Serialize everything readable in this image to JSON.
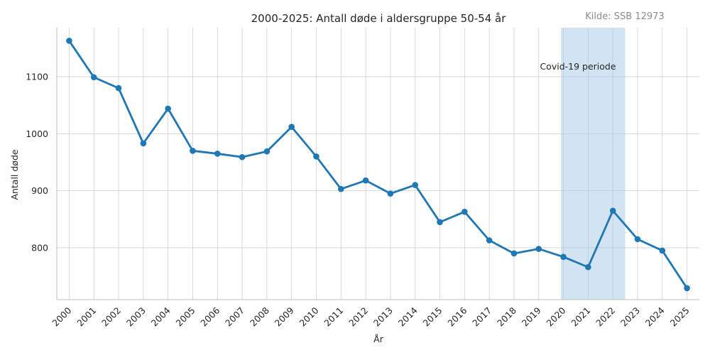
{
  "chart_data": {
    "type": "line",
    "title": "2000-2025: Antall døde i aldersgruppe 50-54 år",
    "source": "Kilde: SSB 12973",
    "xlabel": "År",
    "ylabel": "Antall døde",
    "x": [
      "2000",
      "2001",
      "2002",
      "2003",
      "2004",
      "2005",
      "2006",
      "2007",
      "2008",
      "2009",
      "2010",
      "2011",
      "2012",
      "2013",
      "2014",
      "2015",
      "2016",
      "2017",
      "2018",
      "2019",
      "2020",
      "2021",
      "2022",
      "2023",
      "2024",
      "2025"
    ],
    "series": [
      {
        "values": [
          1163,
          1099,
          1080,
          983,
          1044,
          970,
          965,
          959,
          969,
          1012,
          960,
          903,
          918,
          895,
          910,
          845,
          863,
          813,
          790,
          798,
          784,
          766,
          865,
          815,
          795,
          729
        ],
        "color": "#1f77b4"
      }
    ],
    "yticks": [
      800,
      900,
      1000,
      1100
    ],
    "ylim": [
      709,
      1186
    ],
    "grid": true,
    "shaded_region": {
      "label": "Covid-19 periode",
      "x_start": 2019.9,
      "x_end": 2022.5,
      "color": "#a6c8e4"
    }
  }
}
